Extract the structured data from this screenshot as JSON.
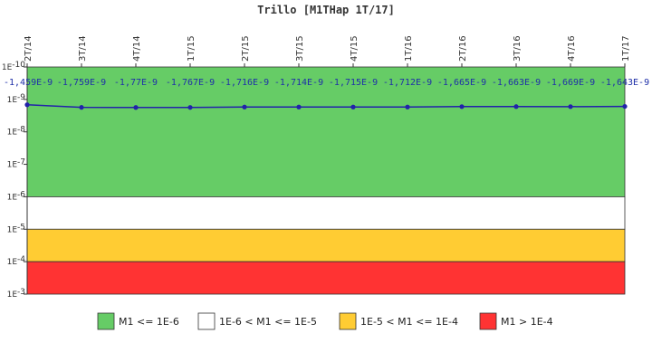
{
  "chart_data": {
    "type": "line",
    "title": "Trillo [M1THap 1T/17]",
    "y_scale": "log",
    "y_inverted": true,
    "ylim": [
      1e-10,
      0.001
    ],
    "y_ticks": [
      "1E-10",
      "1E-9",
      "1E-8",
      "1E-7",
      "1E-6",
      "1E-5",
      "1E-4",
      "1E-3"
    ],
    "categories": [
      "2T/14",
      "3T/14",
      "4T/14",
      "1T/15",
      "2T/15",
      "3T/15",
      "4T/15",
      "1T/16",
      "2T/16",
      "3T/16",
      "4T/16",
      "1T/17"
    ],
    "series": [
      {
        "values": [
          -1.459e-09,
          -1.759e-09,
          -1.77e-09,
          -1.767e-09,
          -1.716e-09,
          -1.714e-09,
          -1.715e-09,
          -1.712e-09,
          -1.665e-09,
          -1.663e-09,
          -1.669e-09,
          -1.643e-09
        ],
        "labels": [
          "-1,459E-9",
          "-1,759E-9",
          "-1,77E-9",
          "-1,767E-9",
          "-1,716E-9",
          "-1,714E-9",
          "-1,715E-9",
          "-1,712E-9",
          "-1,665E-9",
          "-1,663E-9",
          "-1,669E-9",
          "-1,643E-9"
        ],
        "color": "#2222aa"
      }
    ],
    "bands": [
      {
        "label": "M1 <= 1E-6",
        "from": 1e-10,
        "to": 1e-06,
        "color": "#66cc66"
      },
      {
        "label": "1E-6 < M1 <= 1E-5",
        "from": 1e-06,
        "to": 1e-05,
        "color": "#ffffff"
      },
      {
        "label": "1E-5 < M1 <= 1E-4",
        "from": 1e-05,
        "to": 0.0001,
        "color": "#ffcc33"
      },
      {
        "label": "M1 > 1E-4",
        "from": 0.0001,
        "to": 0.001,
        "color": "#ff3333"
      }
    ],
    "legend_position": "bottom"
  }
}
